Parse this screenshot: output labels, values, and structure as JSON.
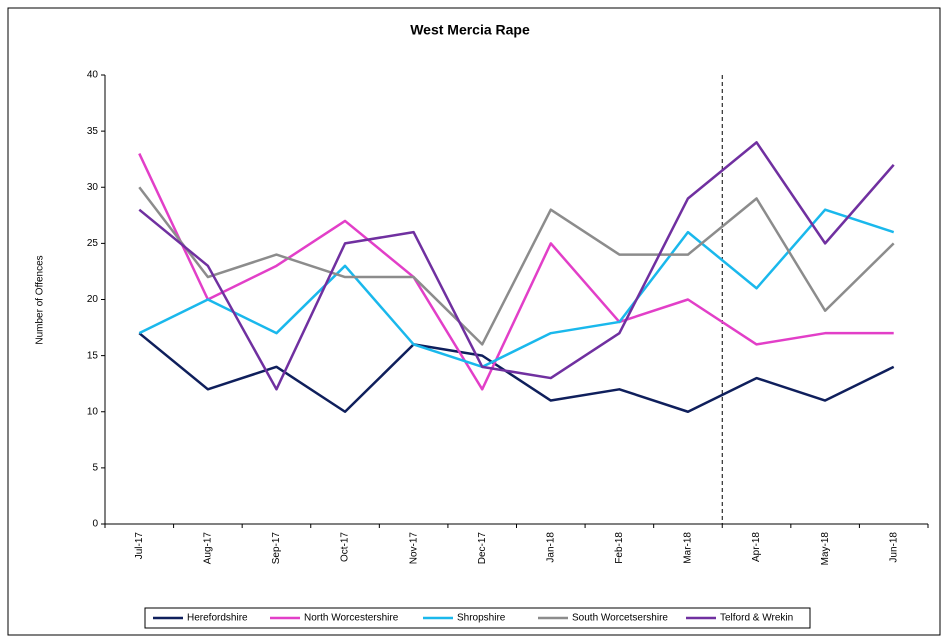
{
  "chart_data": {
    "type": "line",
    "title": "West Mercia Rape",
    "y_label": "Number  of Offences",
    "categories": [
      "Jul-17",
      "Aug-17",
      "Sep-17",
      "Oct-17",
      "Nov-17",
      "Dec-17",
      "Jan-18",
      "Feb-18",
      "Mar-18",
      "Apr-18",
      "May-18",
      "Jun-18"
    ],
    "series": [
      {
        "name": "Herefordshire",
        "color": "#0f1f5c",
        "values": [
          17,
          12,
          14,
          10,
          16,
          15,
          11,
          12,
          10,
          13,
          11,
          14
        ]
      },
      {
        "name": "North Worcestershire",
        "color": "#e23fc8",
        "values": [
          33,
          20,
          23,
          27,
          22,
          12,
          25,
          18,
          20,
          16,
          17,
          17
        ]
      },
      {
        "name": "Shropshire",
        "color": "#1ab8ec",
        "values": [
          17,
          20,
          17,
          23,
          16,
          14,
          17,
          18,
          26,
          21,
          28,
          26
        ]
      },
      {
        "name": "South Worcetsershire",
        "color": "#8c8c8c",
        "values": [
          30,
          22,
          24,
          22,
          22,
          16,
          28,
          24,
          24,
          29,
          19,
          25
        ]
      },
      {
        "name": "Telford & Wrekin",
        "color": "#7030a0",
        "values": [
          28,
          23,
          12,
          25,
          26,
          14,
          13,
          17,
          29,
          34,
          25,
          32
        ]
      }
    ],
    "ylim": [
      0,
      40
    ],
    "yticks": [
      0,
      5,
      10,
      15,
      20,
      25,
      30,
      35,
      40
    ],
    "grid": false,
    "legend": "bottom"
  }
}
